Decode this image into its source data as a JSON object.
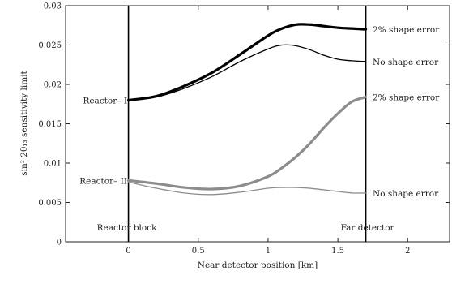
{
  "chart_data": {
    "type": "line",
    "title": "",
    "xlabel": "Near detector position [km]",
    "ylabel": "sin² 2θ₁₃ sensitivity limit",
    "xlim": [
      -0.45,
      2.3
    ],
    "ylim": [
      0,
      0.03
    ],
    "grid": false,
    "xticks": [
      0,
      0.5,
      1,
      1.5,
      2
    ],
    "xtick_labels": [
      "0",
      "0.5",
      "1",
      "1.5",
      "2"
    ],
    "yticks": [
      0,
      0.005,
      0.01,
      0.015,
      0.02,
      0.025,
      0.03
    ],
    "ytick_labels": [
      "0",
      "0.005",
      "0.01",
      "0.015",
      "0.02",
      "0.025",
      "0.03"
    ],
    "vertical_lines": [
      {
        "x": 0,
        "label": "Reactor block"
      },
      {
        "x": 1.7,
        "label": "Far detector"
      }
    ],
    "row_labels": [
      {
        "text": "Reactor– I",
        "y": 0.018
      },
      {
        "text": "Reactor– II",
        "y": 0.0078
      }
    ],
    "series": [
      {
        "name": "2% shape error",
        "group": "Reactor-I",
        "color": "#000000",
        "weight": "thick",
        "x": [
          0,
          0.2,
          0.4,
          0.6,
          0.8,
          1.0,
          1.1,
          1.2,
          1.3,
          1.4,
          1.5,
          1.6,
          1.7
        ],
        "y": [
          0.018,
          0.0185,
          0.0198,
          0.0215,
          0.0238,
          0.0262,
          0.0271,
          0.0276,
          0.0276,
          0.0274,
          0.0272,
          0.0271,
          0.027
        ]
      },
      {
        "name": "No shape error",
        "group": "Reactor-I",
        "color": "#000000",
        "weight": "thin",
        "x": [
          0,
          0.2,
          0.4,
          0.6,
          0.8,
          1.0,
          1.1,
          1.2,
          1.3,
          1.4,
          1.5,
          1.6,
          1.7
        ],
        "y": [
          0.018,
          0.0184,
          0.0195,
          0.021,
          0.0229,
          0.0245,
          0.025,
          0.0249,
          0.0244,
          0.0237,
          0.0232,
          0.023,
          0.0229
        ]
      },
      {
        "name": "2% shape error",
        "group": "Reactor-II",
        "color": "#8c8c8c",
        "weight": "thick",
        "x": [
          0,
          0.2,
          0.4,
          0.6,
          0.8,
          1.0,
          1.1,
          1.2,
          1.3,
          1.4,
          1.5,
          1.6,
          1.7
        ],
        "y": [
          0.0078,
          0.0074,
          0.0069,
          0.0067,
          0.0071,
          0.0083,
          0.0094,
          0.0108,
          0.0125,
          0.0145,
          0.0163,
          0.0178,
          0.0184
        ]
      },
      {
        "name": "No shape error",
        "group": "Reactor-II",
        "color": "#8c8c8c",
        "weight": "thin",
        "x": [
          0,
          0.2,
          0.4,
          0.6,
          0.8,
          1.0,
          1.1,
          1.2,
          1.3,
          1.4,
          1.5,
          1.6,
          1.7
        ],
        "y": [
          0.0076,
          0.0068,
          0.0062,
          0.006,
          0.0063,
          0.0068,
          0.0069,
          0.0069,
          0.0068,
          0.0066,
          0.0064,
          0.0062,
          0.0062
        ]
      }
    ]
  }
}
